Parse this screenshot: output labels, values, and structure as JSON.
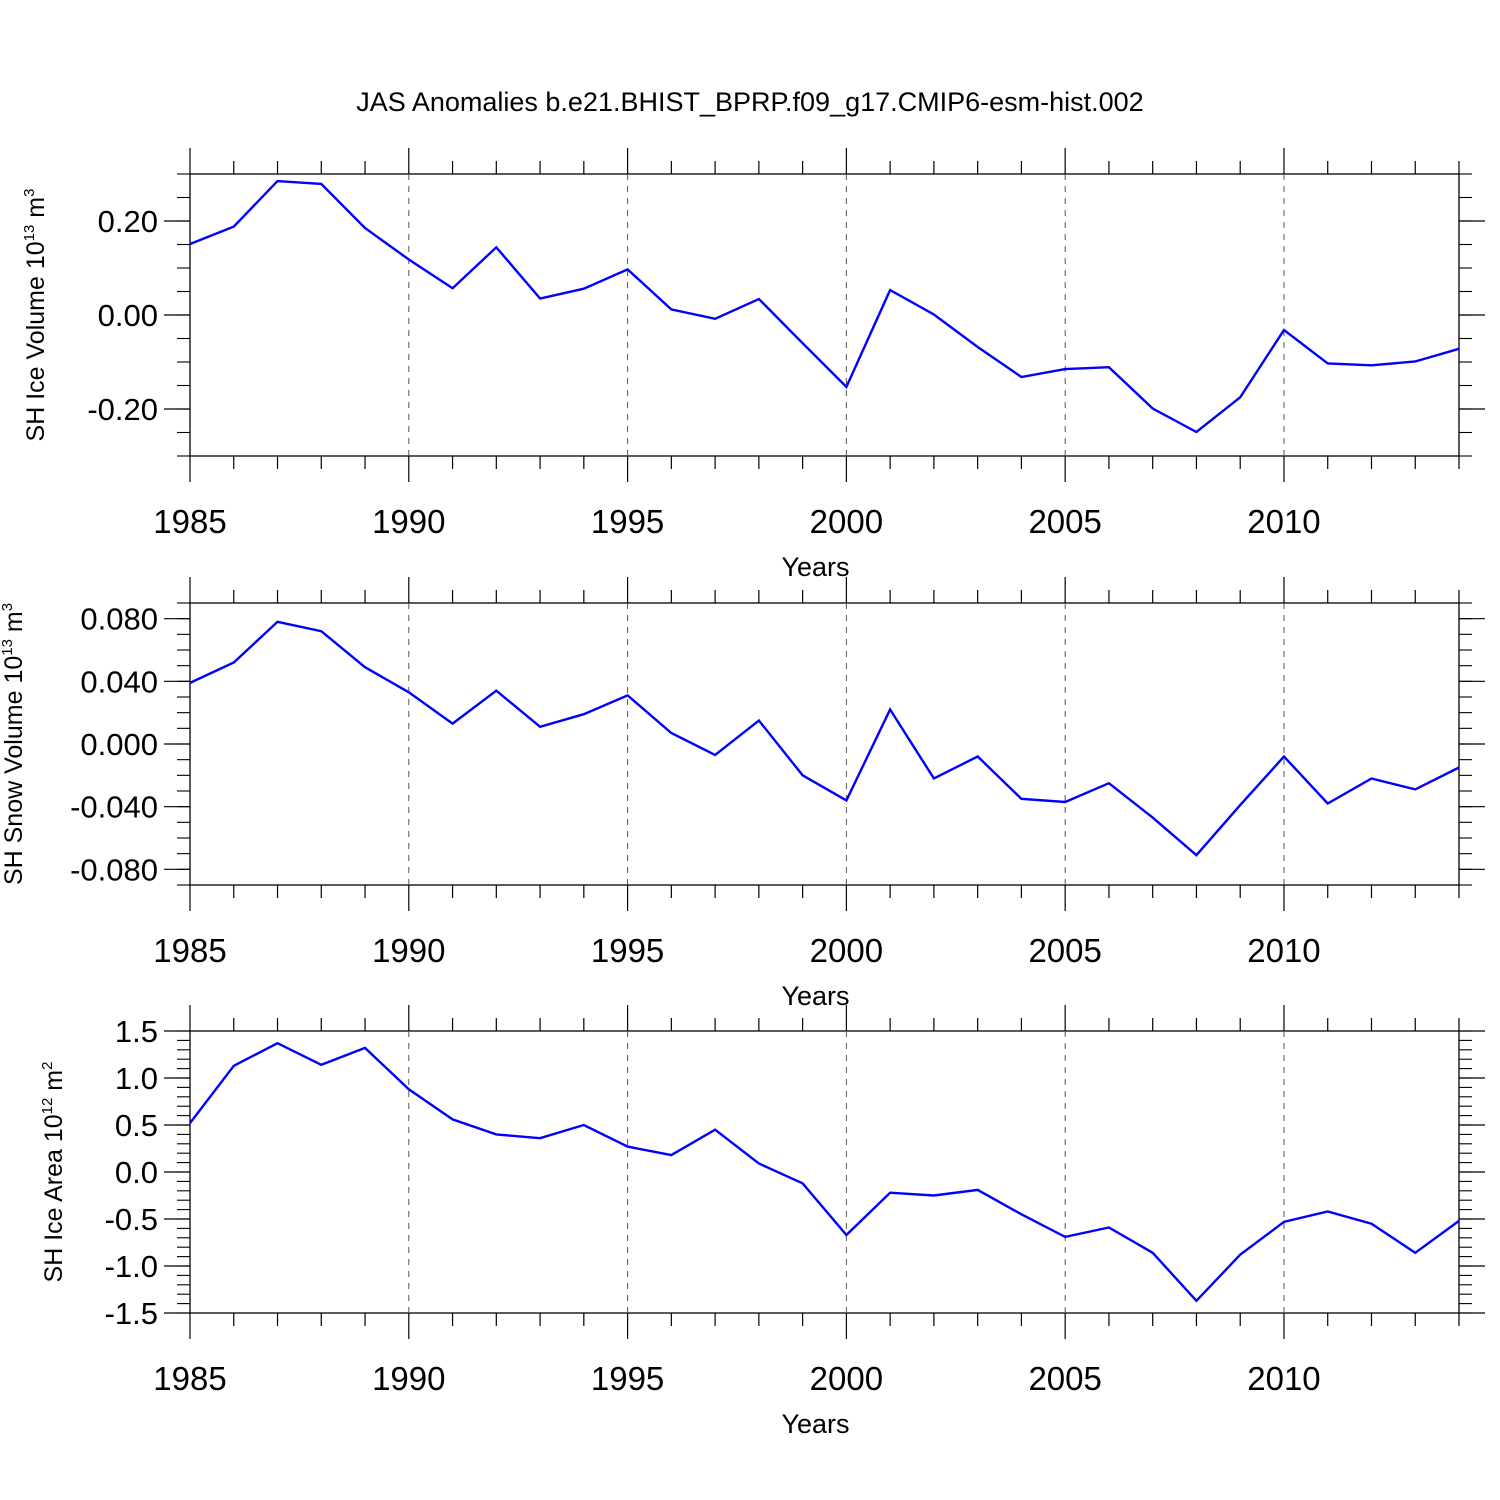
{
  "title": "JAS Anomalies b.e21.BHIST_BPRP.f09_g17.CMIP6-esm-hist.002",
  "chart_data": [
    {
      "type": "line",
      "title": "",
      "ylabel": "SH Ice Volume 10^13 m^3",
      "ylabel_parts": {
        "base": "SH Ice Volume 10",
        "exp": "13",
        "unit": " m",
        "unit_exp": "3"
      },
      "xlabel": "Years",
      "xlim": [
        1985,
        2014
      ],
      "ylim": [
        -0.3,
        0.3
      ],
      "x_ticks": [
        1985,
        1990,
        1995,
        2000,
        2005,
        2010
      ],
      "x_tick_labels": [
        "1985",
        "1990",
        "1995",
        "2000",
        "2005",
        "2010"
      ],
      "y_ticks": [
        -0.2,
        0.0,
        0.2
      ],
      "y_tick_labels": [
        "-0.20",
        "0.00",
        "0.20"
      ],
      "grid": "vertical dashed at major x ticks",
      "line_color": "#0000ff",
      "x": [
        1985,
        1986,
        1987,
        1988,
        1989,
        1990,
        1991,
        1992,
        1993,
        1994,
        1995,
        1996,
        1997,
        1998,
        1999,
        2000,
        2001,
        2002,
        2003,
        2004,
        2005,
        2006,
        2007,
        2008,
        2009,
        2010,
        2011,
        2012,
        2013,
        2014
      ],
      "values": [
        0.151,
        0.188,
        0.285,
        0.279,
        0.185,
        0.118,
        0.057,
        0.144,
        0.035,
        0.056,
        0.097,
        0.012,
        -0.008,
        0.034,
        -0.06,
        -0.153,
        0.053,
        0.001,
        -0.068,
        -0.132,
        -0.115,
        -0.111,
        -0.199,
        -0.249,
        -0.175,
        -0.032,
        -0.103,
        -0.107,
        -0.099,
        -0.072
      ]
    },
    {
      "type": "line",
      "title": "",
      "ylabel": "SH Snow Volume 10^13 m^3",
      "ylabel_parts": {
        "base": "SH Snow Volume 10",
        "exp": "13",
        "unit": " m",
        "unit_exp": "3"
      },
      "xlabel": "Years",
      "xlim": [
        1985,
        2014
      ],
      "ylim": [
        -0.09,
        0.09
      ],
      "x_ticks": [
        1985,
        1990,
        1995,
        2000,
        2005,
        2010
      ],
      "x_tick_labels": [
        "1985",
        "1990",
        "1995",
        "2000",
        "2005",
        "2010"
      ],
      "y_ticks": [
        -0.08,
        -0.04,
        0.0,
        0.04,
        0.08
      ],
      "y_tick_labels": [
        "-0.080",
        "-0.040",
        "0.000",
        "0.040",
        "0.080"
      ],
      "grid": "vertical dashed at major x ticks",
      "line_color": "#0000ff",
      "x": [
        1985,
        1986,
        1987,
        1988,
        1989,
        1990,
        1991,
        1992,
        1993,
        1994,
        1995,
        1996,
        1997,
        1998,
        1999,
        2000,
        2001,
        2002,
        2003,
        2004,
        2005,
        2006,
        2007,
        2008,
        2009,
        2010,
        2011,
        2012,
        2013,
        2014
      ],
      "values": [
        0.039,
        0.052,
        0.078,
        0.072,
        0.049,
        0.033,
        0.013,
        0.034,
        0.011,
        0.019,
        0.031,
        0.007,
        -0.007,
        0.015,
        -0.02,
        -0.036,
        0.022,
        -0.022,
        -0.008,
        -0.035,
        -0.037,
        -0.025,
        -0.047,
        -0.071,
        -0.039,
        -0.008,
        -0.038,
        -0.022,
        -0.029,
        -0.015
      ]
    },
    {
      "type": "line",
      "title": "",
      "ylabel": "SH Ice Area 10^12 m^2",
      "ylabel_parts": {
        "base": "SH Ice Area 10",
        "exp": "12",
        "unit": " m",
        "unit_exp": "2"
      },
      "xlabel": "Years",
      "xlim": [
        1985,
        2014
      ],
      "ylim": [
        -1.5,
        1.5
      ],
      "x_ticks": [
        1985,
        1990,
        1995,
        2000,
        2005,
        2010
      ],
      "x_tick_labels": [
        "1985",
        "1990",
        "1995",
        "2000",
        "2005",
        "2010"
      ],
      "y_ticks": [
        -1.5,
        -1.0,
        -0.5,
        0.0,
        0.5,
        1.0,
        1.5
      ],
      "y_tick_labels": [
        "-1.5",
        "-1.0",
        "-0.5",
        "0.0",
        "0.5",
        "1.0",
        "1.5"
      ],
      "grid": "vertical dashed at major x ticks",
      "line_color": "#0000ff",
      "x": [
        1985,
        1986,
        1987,
        1988,
        1989,
        1990,
        1991,
        1992,
        1993,
        1994,
        1995,
        1996,
        1997,
        1998,
        1999,
        2000,
        2001,
        2002,
        2003,
        2004,
        2005,
        2006,
        2007,
        2008,
        2009,
        2010,
        2011,
        2012,
        2013,
        2014
      ],
      "values": [
        0.52,
        1.13,
        1.37,
        1.14,
        1.32,
        0.88,
        0.56,
        0.4,
        0.36,
        0.5,
        0.27,
        0.18,
        0.45,
        0.09,
        -0.12,
        -0.67,
        -0.22,
        -0.25,
        -0.19,
        -0.45,
        -0.69,
        -0.59,
        -0.86,
        -1.37,
        -0.88,
        -0.53,
        -0.42,
        -0.55,
        -0.86,
        -0.52
      ]
    }
  ]
}
